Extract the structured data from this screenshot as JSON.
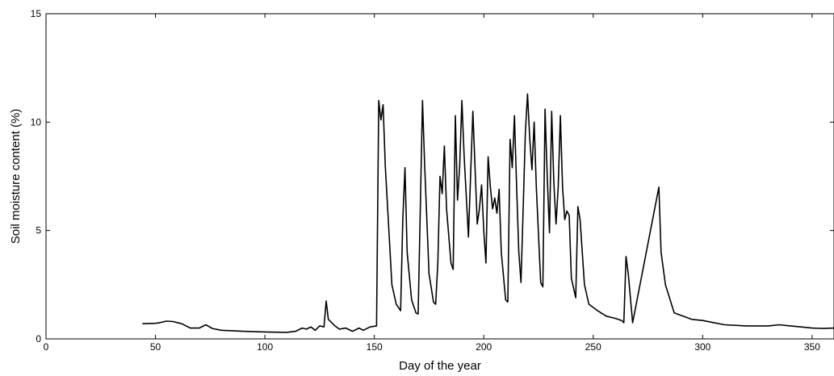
{
  "chart_data": {
    "type": "line",
    "title": "",
    "xlabel": "Day of the year",
    "ylabel": "Soil moisture content (%)",
    "xlim": [
      0,
      360
    ],
    "ylim": [
      0,
      15
    ],
    "xticks": [
      0,
      50,
      100,
      150,
      200,
      250,
      300,
      350
    ],
    "yticks": [
      0,
      5,
      10,
      15
    ],
    "x_tick_labels": [
      "0",
      "50",
      "100",
      "150",
      "200",
      "250",
      "300",
      "350"
    ],
    "y_tick_labels": [
      "0",
      "5",
      "10",
      "15"
    ],
    "grid": false,
    "line_color": "#000000",
    "series": [
      {
        "points": [
          [
            44,
            0.7
          ],
          [
            50,
            0.72
          ],
          [
            52,
            0.75
          ],
          [
            55,
            0.82
          ],
          [
            58,
            0.8
          ],
          [
            62,
            0.7
          ],
          [
            66,
            0.5
          ],
          [
            70,
            0.5
          ],
          [
            73,
            0.65
          ],
          [
            76,
            0.48
          ],
          [
            80,
            0.4
          ],
          [
            90,
            0.35
          ],
          [
            100,
            0.32
          ],
          [
            110,
            0.3
          ],
          [
            114,
            0.35
          ],
          [
            117,
            0.5
          ],
          [
            119,
            0.45
          ],
          [
            121,
            0.55
          ],
          [
            123,
            0.4
          ],
          [
            125,
            0.6
          ],
          [
            127,
            0.55
          ],
          [
            128,
            1.75
          ],
          [
            129,
            0.9
          ],
          [
            132,
            0.6
          ],
          [
            134,
            0.45
          ],
          [
            137,
            0.5
          ],
          [
            140,
            0.35
          ],
          [
            143,
            0.5
          ],
          [
            145,
            0.4
          ],
          [
            148,
            0.55
          ],
          [
            151,
            0.6
          ],
          [
            152,
            11.0
          ],
          [
            153,
            10.1
          ],
          [
            154,
            10.8
          ],
          [
            155,
            8.0
          ],
          [
            158,
            2.5
          ],
          [
            160,
            1.6
          ],
          [
            162,
            1.3
          ],
          [
            163,
            5.5
          ],
          [
            164,
            7.9
          ],
          [
            165,
            4.0
          ],
          [
            167,
            1.8
          ],
          [
            169,
            1.2
          ],
          [
            170,
            1.15
          ],
          [
            171,
            6.0
          ],
          [
            172,
            11.0
          ],
          [
            173,
            8.0
          ],
          [
            175,
            3.0
          ],
          [
            177,
            1.7
          ],
          [
            178,
            1.6
          ],
          [
            179,
            3.5
          ],
          [
            180,
            7.5
          ],
          [
            181,
            6.7
          ],
          [
            182,
            8.9
          ],
          [
            183,
            6.0
          ],
          [
            185,
            3.5
          ],
          [
            186,
            3.2
          ],
          [
            187,
            10.3
          ],
          [
            188,
            6.4
          ],
          [
            189,
            8.0
          ],
          [
            190,
            11.0
          ],
          [
            191,
            8.5
          ],
          [
            193,
            4.7
          ],
          [
            195,
            10.5
          ],
          [
            197,
            5.3
          ],
          [
            198,
            6.0
          ],
          [
            199,
            7.1
          ],
          [
            200,
            5.0
          ],
          [
            201,
            3.5
          ],
          [
            202,
            8.4
          ],
          [
            203,
            7.0
          ],
          [
            204,
            6.0
          ],
          [
            205,
            6.5
          ],
          [
            206,
            5.8
          ],
          [
            207,
            6.9
          ],
          [
            208,
            4.0
          ],
          [
            210,
            1.8
          ],
          [
            211,
            1.7
          ],
          [
            212,
            9.2
          ],
          [
            213,
            7.9
          ],
          [
            214,
            10.3
          ],
          [
            215,
            7.0
          ],
          [
            216,
            4.0
          ],
          [
            217,
            2.6
          ],
          [
            218,
            6.0
          ],
          [
            219,
            9.5
          ],
          [
            220,
            11.3
          ],
          [
            221,
            9.2
          ],
          [
            222,
            7.8
          ],
          [
            223,
            10.0
          ],
          [
            224,
            7.0
          ],
          [
            226,
            2.6
          ],
          [
            227,
            2.4
          ],
          [
            228,
            10.6
          ],
          [
            229,
            7.5
          ],
          [
            230,
            4.9
          ],
          [
            231,
            10.5
          ],
          [
            232,
            7.2
          ],
          [
            233,
            5.3
          ],
          [
            234,
            7.0
          ],
          [
            235,
            10.3
          ],
          [
            236,
            7.0
          ],
          [
            237,
            5.5
          ],
          [
            238,
            5.9
          ],
          [
            239,
            5.7
          ],
          [
            240,
            2.8
          ],
          [
            242,
            1.9
          ],
          [
            243,
            6.1
          ],
          [
            244,
            5.5
          ],
          [
            246,
            2.5
          ],
          [
            248,
            1.6
          ],
          [
            252,
            1.3
          ],
          [
            256,
            1.05
          ],
          [
            260,
            0.95
          ],
          [
            263,
            0.85
          ],
          [
            264,
            0.75
          ],
          [
            265,
            3.8
          ],
          [
            266,
            3.0
          ],
          [
            268,
            0.75
          ],
          [
            280,
            7.0
          ],
          [
            281,
            4.0
          ],
          [
            283,
            2.5
          ],
          [
            287,
            1.2
          ],
          [
            295,
            0.9
          ],
          [
            300,
            0.85
          ],
          [
            310,
            0.65
          ],
          [
            320,
            0.6
          ],
          [
            330,
            0.6
          ],
          [
            335,
            0.65
          ],
          [
            340,
            0.6
          ],
          [
            345,
            0.55
          ],
          [
            350,
            0.5
          ],
          [
            355,
            0.48
          ],
          [
            360,
            0.5
          ]
        ]
      }
    ]
  }
}
